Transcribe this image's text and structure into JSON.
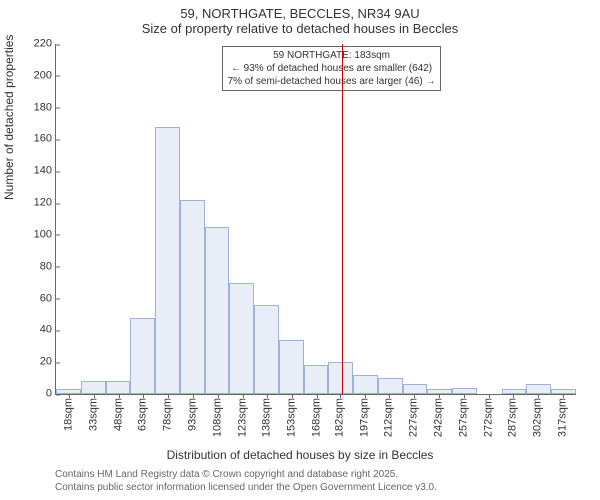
{
  "chart": {
    "type": "histogram",
    "title_main": "59, NORTHGATE, BECCLES, NR34 9AU",
    "title_sub": "Size of property relative to detached houses in Beccles",
    "ylabel": "Number of detached properties",
    "xlabel": "Distribution of detached houses by size in Beccles",
    "title_fontsize": 13,
    "label_fontsize": 12,
    "tick_fontsize": 11,
    "background_color": "#ffffff",
    "bar_fill": "#e8edf7",
    "bar_border": "#9db2d8",
    "axis_color": "#666666",
    "ref_line_color": "#cc0000",
    "ref_line_x": 183,
    "ylim": [
      0,
      220
    ],
    "ytick_step": 20,
    "yticks": [
      0,
      20,
      40,
      60,
      80,
      100,
      120,
      140,
      160,
      180,
      200,
      220
    ],
    "x_min": 10,
    "x_max": 325,
    "xticks": [
      "18sqm",
      "33sqm",
      "48sqm",
      "63sqm",
      "78sqm",
      "93sqm",
      "108sqm",
      "123sqm",
      "138sqm",
      "153sqm",
      "168sqm",
      "182sqm",
      "197sqm",
      "212sqm",
      "227sqm",
      "242sqm",
      "257sqm",
      "272sqm",
      "287sqm",
      "302sqm",
      "317sqm"
    ],
    "xtick_positions": [
      18,
      33,
      48,
      63,
      78,
      93,
      108,
      123,
      138,
      153,
      168,
      182,
      197,
      212,
      227,
      242,
      257,
      272,
      287,
      302,
      317
    ],
    "bin_width": 15,
    "bars": [
      {
        "x": 10,
        "h": 3
      },
      {
        "x": 25,
        "h": 8
      },
      {
        "x": 40,
        "h": 8
      },
      {
        "x": 55,
        "h": 48
      },
      {
        "x": 70,
        "h": 168
      },
      {
        "x": 85,
        "h": 122
      },
      {
        "x": 100,
        "h": 105
      },
      {
        "x": 115,
        "h": 70
      },
      {
        "x": 130,
        "h": 56
      },
      {
        "x": 145,
        "h": 34
      },
      {
        "x": 160,
        "h": 18
      },
      {
        "x": 175,
        "h": 20
      },
      {
        "x": 190,
        "h": 12
      },
      {
        "x": 205,
        "h": 10
      },
      {
        "x": 220,
        "h": 6
      },
      {
        "x": 235,
        "h": 3
      },
      {
        "x": 250,
        "h": 4
      },
      {
        "x": 265,
        "h": 0
      },
      {
        "x": 280,
        "h": 3
      },
      {
        "x": 295,
        "h": 6
      },
      {
        "x": 310,
        "h": 3
      }
    ],
    "annotation": {
      "line1": "59 NORTHGATE: 183sqm",
      "line2": "← 93% of detached houses are smaller (642)",
      "line3": "7% of semi-detached houses are larger (46) →",
      "box_border": "#666666",
      "box_bg": "#ffffff",
      "fontsize": 10
    },
    "footer_line1": "Contains HM Land Registry data © Crown copyright and database right 2025.",
    "footer_line2": "Contains public sector information licensed under the Open Government Licence v3.0.",
    "footer_color": "#666666"
  }
}
